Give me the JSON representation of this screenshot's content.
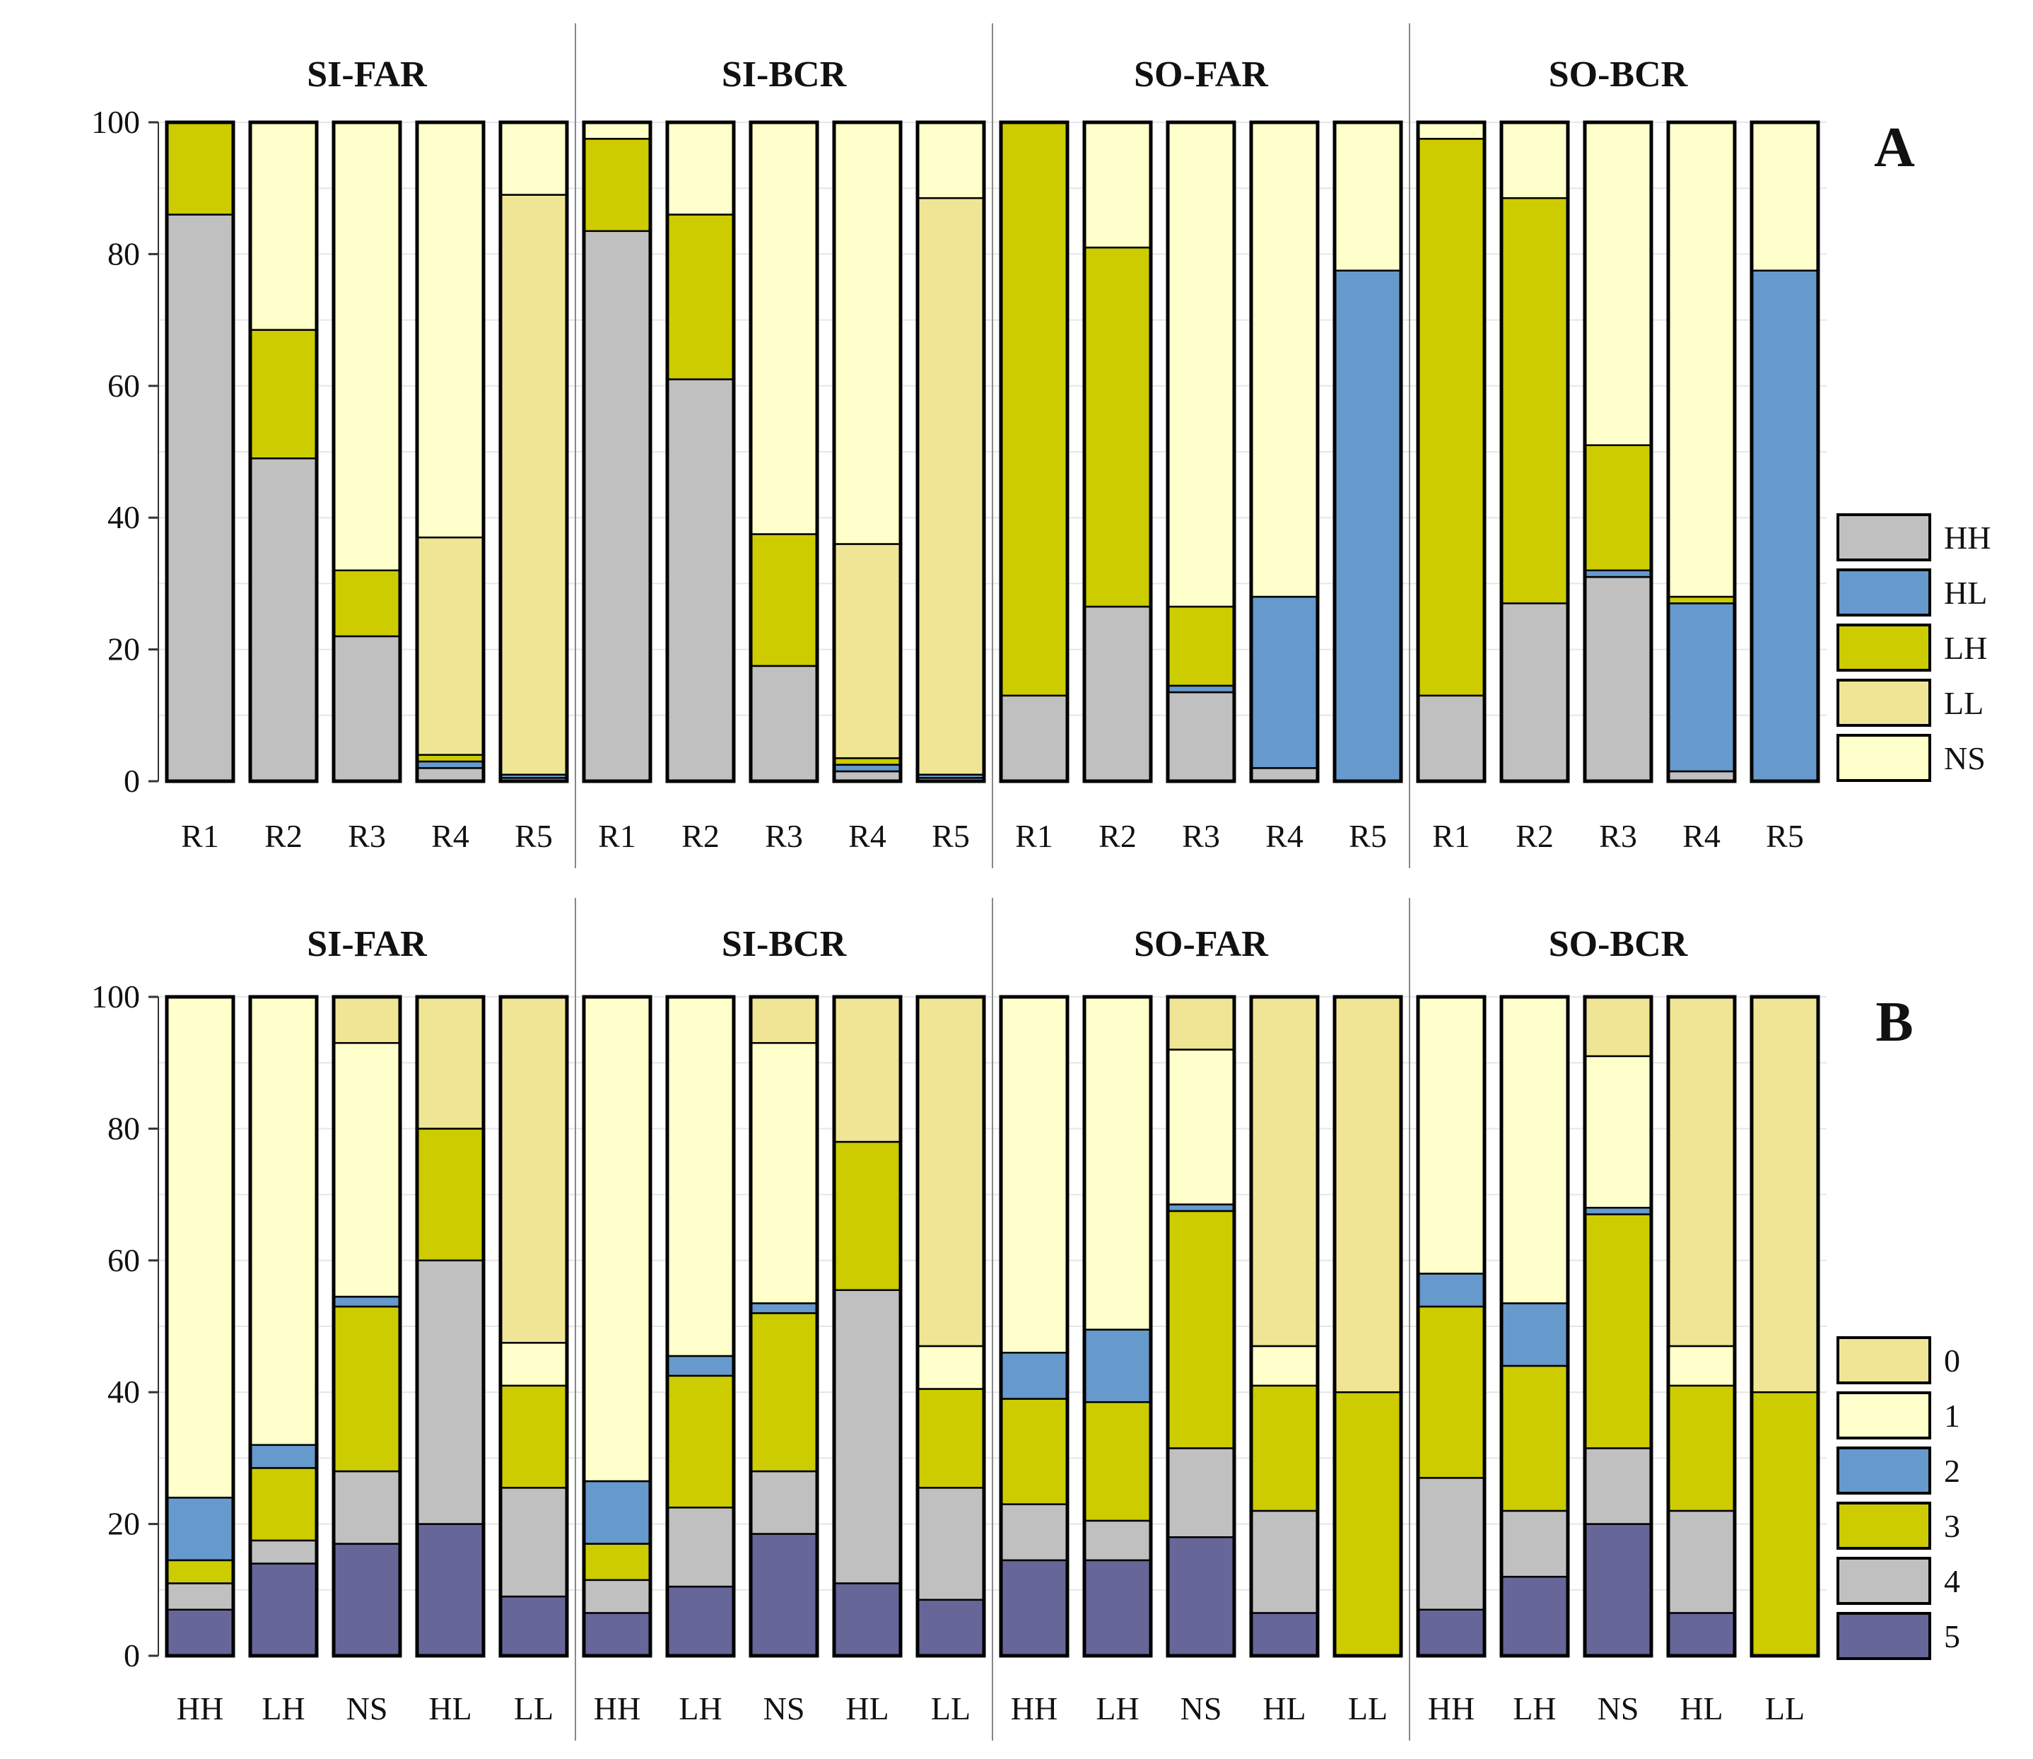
{
  "chart_data": [
    {
      "type": "bar",
      "stacked": true,
      "panel_letter": "A",
      "groups": [
        "SI-FAR",
        "SI-BCR",
        "SO-FAR",
        "SO-BCR"
      ],
      "categories": [
        "R1",
        "R2",
        "R3",
        "R4",
        "R5"
      ],
      "ylim": [
        0,
        100
      ],
      "yticks": [
        "0",
        "20",
        "40",
        "60",
        "80",
        "100"
      ],
      "stack_order": [
        "HH",
        "HL",
        "LH",
        "LL",
        "NS"
      ],
      "legend": [
        "HH",
        "HL",
        "LH",
        "LL",
        "NS"
      ],
      "legend_position": "right",
      "colors": {
        "HH": "#c0c0c0",
        "HL": "#6699cc",
        "LH": "#cccc00",
        "LL": "#efe595",
        "NS": "#ffffcc"
      },
      "bars": [
        {
          "group": "SI-FAR",
          "category": "R1",
          "values": {
            "HH": 86,
            "HL": 0,
            "LH": 14,
            "LL": 0,
            "NS": 0
          }
        },
        {
          "group": "SI-FAR",
          "category": "R2",
          "values": {
            "HH": 49,
            "HL": 0,
            "LH": 19.5,
            "LL": 0,
            "NS": 31.5
          }
        },
        {
          "group": "SI-FAR",
          "category": "R3",
          "values": {
            "HH": 22,
            "HL": 0,
            "LH": 10,
            "LL": 0,
            "NS": 68
          }
        },
        {
          "group": "SI-FAR",
          "category": "R4",
          "values": {
            "HH": 2,
            "HL": 1,
            "LH": 1,
            "LL": 33,
            "NS": 63
          }
        },
        {
          "group": "SI-FAR",
          "category": "R5",
          "values": {
            "HH": 0.5,
            "HL": 0.5,
            "LH": 0,
            "LL": 88,
            "NS": 11
          }
        },
        {
          "group": "SI-BCR",
          "category": "R1",
          "values": {
            "HH": 83.5,
            "HL": 0,
            "LH": 14,
            "LL": 0,
            "NS": 2.5
          }
        },
        {
          "group": "SI-BCR",
          "category": "R2",
          "values": {
            "HH": 61,
            "HL": 0,
            "LH": 25,
            "LL": 0,
            "NS": 14
          }
        },
        {
          "group": "SI-BCR",
          "category": "R3",
          "values": {
            "HH": 17.5,
            "HL": 0,
            "LH": 20,
            "LL": 0,
            "NS": 62.5
          }
        },
        {
          "group": "SI-BCR",
          "category": "R4",
          "values": {
            "HH": 1.5,
            "HL": 1,
            "LH": 1,
            "LL": 32.5,
            "NS": 64
          }
        },
        {
          "group": "SI-BCR",
          "category": "R5",
          "values": {
            "HH": 0.5,
            "HL": 0.5,
            "LH": 0,
            "LL": 87.5,
            "NS": 11.5
          }
        },
        {
          "group": "SO-FAR",
          "category": "R1",
          "values": {
            "HH": 13,
            "HL": 0,
            "LH": 87,
            "LL": 0,
            "NS": 0
          }
        },
        {
          "group": "SO-FAR",
          "category": "R2",
          "values": {
            "HH": 26.5,
            "HL": 0,
            "LH": 54.5,
            "LL": 0,
            "NS": 19
          }
        },
        {
          "group": "SO-FAR",
          "category": "R3",
          "values": {
            "HH": 13.5,
            "HL": 1,
            "LH": 12,
            "LL": 0,
            "NS": 73.5
          }
        },
        {
          "group": "SO-FAR",
          "category": "R4",
          "values": {
            "HH": 2,
            "HL": 26,
            "LH": 0,
            "LL": 0,
            "NS": 72
          }
        },
        {
          "group": "SO-FAR",
          "category": "R5",
          "values": {
            "HH": 0,
            "HL": 77.5,
            "LH": 0,
            "LL": 0,
            "NS": 22.5
          }
        },
        {
          "group": "SO-BCR",
          "category": "R1",
          "values": {
            "HH": 13,
            "HL": 0,
            "LH": 84.5,
            "LL": 0,
            "NS": 2.5
          }
        },
        {
          "group": "SO-BCR",
          "category": "R2",
          "values": {
            "HH": 27,
            "HL": 0,
            "LH": 61.5,
            "LL": 0,
            "NS": 11.5
          }
        },
        {
          "group": "SO-BCR",
          "category": "R3",
          "values": {
            "HH": 31,
            "HL": 1,
            "LH": 19,
            "LL": 0,
            "NS": 49
          }
        },
        {
          "group": "SO-BCR",
          "category": "R4",
          "values": {
            "HH": 1.5,
            "HL": 25.5,
            "LH": 1,
            "LL": 0,
            "NS": 72
          }
        },
        {
          "group": "SO-BCR",
          "category": "R5",
          "values": {
            "HH": 0,
            "HL": 77.5,
            "LH": 0,
            "LL": 0,
            "NS": 22.5
          }
        }
      ]
    },
    {
      "type": "bar",
      "stacked": true,
      "panel_letter": "B",
      "groups": [
        "SI-FAR",
        "SI-BCR",
        "SO-FAR",
        "SO-BCR"
      ],
      "categories": [
        "HH",
        "LH",
        "NS",
        "HL",
        "LL"
      ],
      "ylim": [
        0,
        100
      ],
      "yticks": [
        "0",
        "20",
        "40",
        "60",
        "80",
        "100"
      ],
      "stack_order": [
        "5",
        "4",
        "3",
        "2",
        "1",
        "0"
      ],
      "legend": [
        "0",
        "1",
        "2",
        "3",
        "4",
        "5"
      ],
      "legend_position": "right",
      "colors": {
        "0": "#efe595",
        "1": "#ffffcc",
        "2": "#6699cc",
        "3": "#cccc00",
        "4": "#c0c0c0",
        "5": "#666699"
      },
      "bars": [
        {
          "group": "SI-FAR",
          "category": "HH",
          "values": {
            "5": 7,
            "4": 4,
            "3": 3.5,
            "2": 9.5,
            "1": 76,
            "0": 0
          }
        },
        {
          "group": "SI-FAR",
          "category": "LH",
          "values": {
            "5": 14,
            "4": 3.5,
            "3": 11,
            "2": 3.5,
            "1": 68,
            "0": 0
          }
        },
        {
          "group": "SI-FAR",
          "category": "NS",
          "values": {
            "5": 17,
            "4": 11,
            "3": 25,
            "2": 1.5,
            "1": 38.5,
            "0": 7
          }
        },
        {
          "group": "SI-FAR",
          "category": "HL",
          "values": {
            "5": 20,
            "4": 40,
            "3": 20,
            "2": 0,
            "1": 0,
            "0": 20
          }
        },
        {
          "group": "SI-FAR",
          "category": "LL",
          "values": {
            "5": 9,
            "4": 16.5,
            "3": 15.5,
            "2": 0,
            "1": 6.5,
            "0": 52.5
          }
        },
        {
          "group": "SI-BCR",
          "category": "HH",
          "values": {
            "5": 6.5,
            "4": 5,
            "3": 5.5,
            "2": 9.5,
            "1": 73.5,
            "0": 0
          }
        },
        {
          "group": "SI-BCR",
          "category": "LH",
          "values": {
            "5": 10.5,
            "4": 12,
            "3": 20,
            "2": 3,
            "1": 54.5,
            "0": 0
          }
        },
        {
          "group": "SI-BCR",
          "category": "NS",
          "values": {
            "5": 18.5,
            "4": 9.5,
            "3": 24,
            "2": 1.5,
            "1": 39.5,
            "0": 7
          }
        },
        {
          "group": "SI-BCR",
          "category": "HL",
          "values": {
            "5": 11,
            "4": 44.5,
            "3": 22.5,
            "2": 0,
            "1": 0,
            "0": 22
          }
        },
        {
          "group": "SI-BCR",
          "category": "LL",
          "values": {
            "5": 8.5,
            "4": 17,
            "3": 15,
            "2": 0,
            "1": 6.5,
            "0": 53
          }
        },
        {
          "group": "SO-FAR",
          "category": "HH",
          "values": {
            "5": 14.5,
            "4": 8.5,
            "3": 16,
            "2": 7,
            "1": 54,
            "0": 0
          }
        },
        {
          "group": "SO-FAR",
          "category": "LH",
          "values": {
            "5": 14.5,
            "4": 6,
            "3": 18,
            "2": 11,
            "1": 50.5,
            "0": 0
          }
        },
        {
          "group": "SO-FAR",
          "category": "NS",
          "values": {
            "5": 18,
            "4": 13.5,
            "3": 36,
            "2": 1,
            "1": 23.5,
            "0": 8
          }
        },
        {
          "group": "SO-FAR",
          "category": "HL",
          "values": {
            "5": 6.5,
            "4": 15.5,
            "3": 19,
            "2": 0,
            "1": 6,
            "0": 53
          }
        },
        {
          "group": "SO-FAR",
          "category": "LL",
          "values": {
            "5": 0,
            "4": 0,
            "3": 40,
            "2": 0,
            "1": 0,
            "0": 60
          }
        },
        {
          "group": "SO-BCR",
          "category": "HH",
          "values": {
            "5": 7,
            "4": 20,
            "3": 26,
            "2": 5,
            "1": 42,
            "0": 0
          }
        },
        {
          "group": "SO-BCR",
          "category": "LH",
          "values": {
            "5": 12,
            "4": 10,
            "3": 22,
            "2": 9.5,
            "1": 46.5,
            "0": 0
          }
        },
        {
          "group": "SO-BCR",
          "category": "NS",
          "values": {
            "5": 20,
            "4": 11.5,
            "3": 35.5,
            "2": 1,
            "1": 23,
            "0": 9
          }
        },
        {
          "group": "SO-BCR",
          "category": "HL",
          "values": {
            "5": 6.5,
            "4": 15.5,
            "3": 19,
            "2": 0,
            "1": 6,
            "0": 53
          }
        },
        {
          "group": "SO-BCR",
          "category": "LL",
          "values": {
            "5": 0,
            "4": 0,
            "3": 40,
            "2": 0,
            "1": 0,
            "0": 60
          }
        }
      ]
    }
  ]
}
